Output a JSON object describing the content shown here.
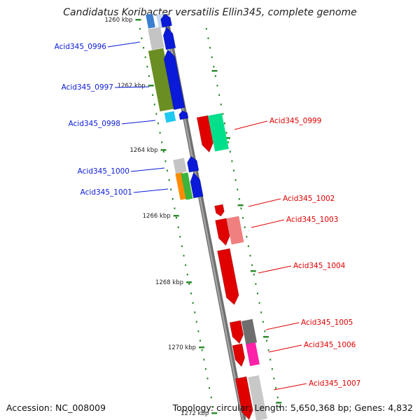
{
  "title": "Candidatus Koribacter versatilis Ellin345, complete genome",
  "accession": "Accession: NC_008009",
  "summary": "Topology: circular; Length: 5,650,368 bp; Genes: 4,832",
  "ticks": [
    {
      "label": "1260 kbp"
    },
    {
      "label": "1262 kbp"
    },
    {
      "label": "1264 kbp"
    },
    {
      "label": "1266 kbp"
    },
    {
      "label": "1268 kbp"
    },
    {
      "label": "1270 kbp"
    },
    {
      "label": "1272 kbp"
    }
  ],
  "genes": [
    {
      "id": "Acid345_0996",
      "strand": "forward",
      "color": "#0a1ad8"
    },
    {
      "id": "Acid345_0997",
      "strand": "forward",
      "color": "#0a1ad8"
    },
    {
      "id": "Acid345_0998",
      "strand": "forward",
      "color": "#0a1ad8"
    },
    {
      "id": "Acid345_0999",
      "strand": "reverse",
      "color": "#e00000"
    },
    {
      "id": "Acid345_1000",
      "strand": "forward",
      "color": "#0a1ad8"
    },
    {
      "id": "Acid345_1001",
      "strand": "forward",
      "color": "#0a1ad8"
    },
    {
      "id": "Acid345_1002",
      "strand": "reverse",
      "color": "#e00000"
    },
    {
      "id": "Acid345_1003",
      "strand": "reverse",
      "color": "#e00000"
    },
    {
      "id": "Acid345_1004",
      "strand": "reverse",
      "color": "#e00000"
    },
    {
      "id": "Acid345_1005",
      "strand": "reverse",
      "color": "#e00000"
    },
    {
      "id": "Acid345_1006",
      "strand": "reverse",
      "color": "#e00000"
    },
    {
      "id": "Acid345_1007",
      "strand": "reverse",
      "color": "#e00000"
    }
  ],
  "colors": {
    "forward_label": "#0a1ad8",
    "reverse_label": "#e00000",
    "backbone": "#8c8c8c",
    "dotted_track": "#2e8b2e"
  }
}
